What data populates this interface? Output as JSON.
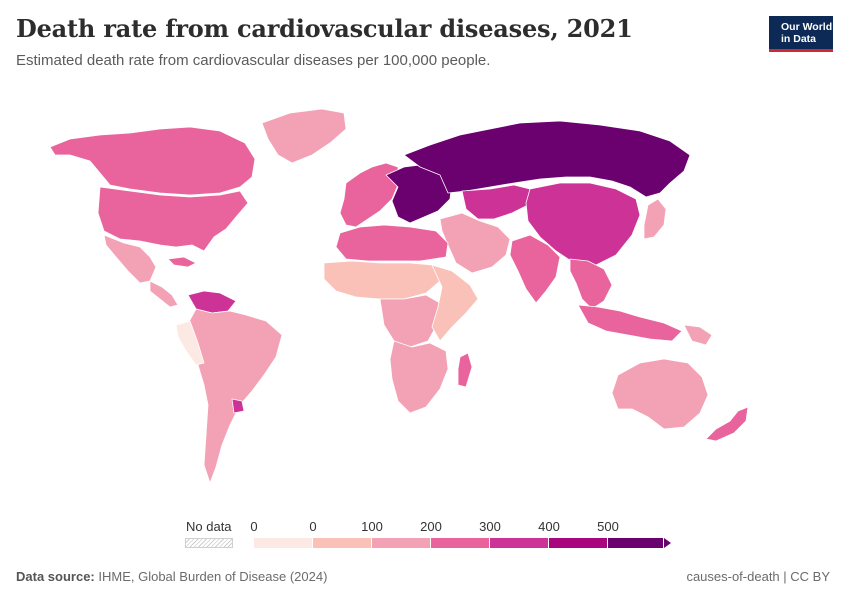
{
  "header": {
    "title": "Death rate from cardiovascular diseases, 2021",
    "subtitle": "Estimated death rate from cardiovascular diseases per 100,000 people."
  },
  "logo": {
    "line1": "Our World",
    "line2": "in Data"
  },
  "legend": {
    "no_data_label": "No data",
    "ticks": [
      "0",
      "0",
      "100",
      "200",
      "300",
      "400",
      "500"
    ],
    "colors": [
      "#fde9e4",
      "#f9c1b7",
      "#f3a1b5",
      "#e9649c",
      "#cd3397",
      "#a8057f",
      "#6b016f"
    ]
  },
  "footer": {
    "source_label": "Data source:",
    "source": "IHME, Global Burden of Disease (2024)",
    "right": "causes-of-death | CC BY"
  },
  "map_regions": [
    {
      "name": "canada-alaska",
      "color": "#e9649c"
    },
    {
      "name": "usa",
      "color": "#e9649c"
    },
    {
      "name": "greenland",
      "color": "#f3a1b5"
    },
    {
      "name": "mexico",
      "color": "#f3a1b5"
    },
    {
      "name": "central-america",
      "color": "#f3a1b5"
    },
    {
      "name": "caribbean",
      "color": "#e9649c"
    },
    {
      "name": "venezuela",
      "color": "#cd3397"
    },
    {
      "name": "south-america",
      "color": "#f3a1b5"
    },
    {
      "name": "peru",
      "color": "#fde9e4"
    },
    {
      "name": "uruguay",
      "color": "#cd3397"
    },
    {
      "name": "western-europe",
      "color": "#e9649c"
    },
    {
      "name": "eastern-europe",
      "color": "#6b016f"
    },
    {
      "name": "russia",
      "color": "#6b016f"
    },
    {
      "name": "central-asia",
      "color": "#cd3397"
    },
    {
      "name": "china-mongolia",
      "color": "#cd3397"
    },
    {
      "name": "middle-east",
      "color": "#f3a1b5"
    },
    {
      "name": "north-africa",
      "color": "#e9649c"
    },
    {
      "name": "sahel",
      "color": "#f9c1b7"
    },
    {
      "name": "central-africa",
      "color": "#f3a1b5"
    },
    {
      "name": "east-africa",
      "color": "#f9c1b7"
    },
    {
      "name": "southern-africa",
      "color": "#f3a1b5"
    },
    {
      "name": "madagascar",
      "color": "#e9649c"
    },
    {
      "name": "india",
      "color": "#e9649c"
    },
    {
      "name": "southeast-asia",
      "color": "#e9649c"
    },
    {
      "name": "indonesia",
      "color": "#e9649c"
    },
    {
      "name": "japan",
      "color": "#f3a1b5"
    },
    {
      "name": "australia",
      "color": "#f3a1b5"
    },
    {
      "name": "new-zealand",
      "color": "#e9649c"
    },
    {
      "name": "papua-new-guinea",
      "color": "#f3a1b5"
    }
  ]
}
